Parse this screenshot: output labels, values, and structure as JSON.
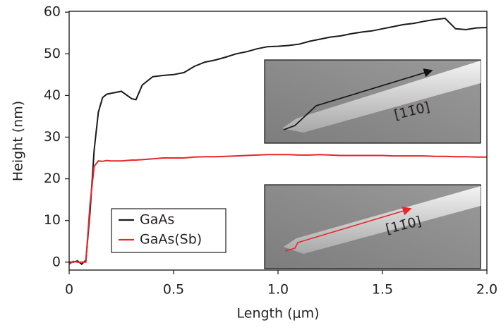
{
  "chart_data": {
    "type": "line",
    "xlabel": "Length (μm)",
    "ylabel": "Height (nm)",
    "x": [
      0,
      0.02,
      0.04,
      0.06,
      0.08,
      0.1,
      0.12,
      0.14,
      0.16,
      0.18,
      0.2,
      0.25,
      0.3,
      0.32,
      0.35,
      0.4,
      0.45,
      0.5,
      0.55,
      0.6,
      0.65,
      0.7,
      0.75,
      0.8,
      0.85,
      0.9,
      0.95,
      1.0,
      1.05,
      1.1,
      1.15,
      1.2,
      1.25,
      1.3,
      1.35,
      1.4,
      1.45,
      1.5,
      1.55,
      1.6,
      1.65,
      1.7,
      1.75,
      1.8,
      1.85,
      1.9,
      1.95,
      2.0
    ],
    "series": [
      {
        "name": "GaAs",
        "color": "#1a1a1a",
        "values": [
          0,
          0,
          0.3,
          -0.5,
          0.5,
          12,
          27,
          36,
          39.5,
          40.3,
          40.5,
          41,
          39.2,
          39,
          42.5,
          44.5,
          44.8,
          45,
          45.5,
          47,
          48,
          48.5,
          49.2,
          50,
          50.5,
          51.2,
          51.7,
          51.8,
          52,
          52.3,
          53,
          53.5,
          54,
          54.3,
          54.8,
          55.2,
          55.5,
          56,
          56.5,
          57,
          57.3,
          57.8,
          58.2,
          58.5,
          56,
          55.8,
          56.2,
          56.3
        ]
      },
      {
        "name": "GaAs(Sb)",
        "color": "#e8262a",
        "values": [
          -0.5,
          0.2,
          0,
          0,
          0,
          14,
          23,
          24.3,
          24.2,
          24.4,
          24.3,
          24.3,
          24.5,
          24.5,
          24.6,
          24.8,
          25,
          25,
          25,
          25.2,
          25.3,
          25.3,
          25.4,
          25.5,
          25.6,
          25.7,
          25.8,
          25.8,
          25.8,
          25.7,
          25.7,
          25.8,
          25.7,
          25.6,
          25.6,
          25.6,
          25.6,
          25.6,
          25.5,
          25.5,
          25.5,
          25.5,
          25.4,
          25.4,
          25.3,
          25.3,
          25.2,
          25.2
        ]
      }
    ],
    "xlim": [
      0,
      2.0
    ],
    "xticks": [
      0,
      0.5,
      {
        "value": 1.0,
        "label": "1.0"
      },
      1.5,
      {
        "value": 2.0,
        "label": "2.0"
      }
    ],
    "ylim": [
      -1.9,
      60.2
    ],
    "yticks": [
      0,
      10,
      20,
      30,
      40,
      50,
      60
    ],
    "legend": "lower left",
    "annotations": [
      "[11̄0]",
      "[11̄0]"
    ]
  }
}
